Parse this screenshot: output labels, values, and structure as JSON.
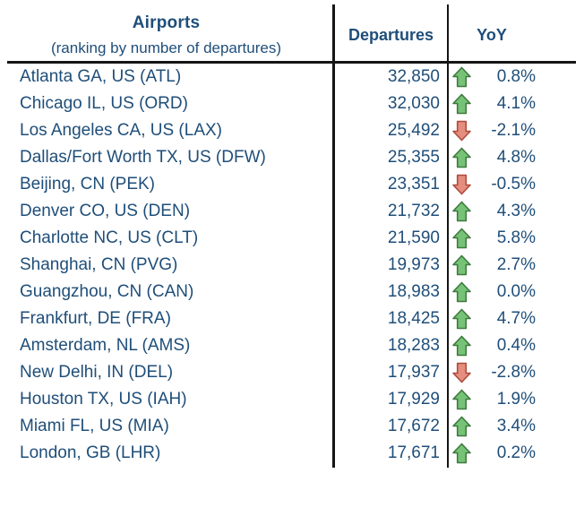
{
  "colors": {
    "text": "#1F4E79",
    "rule_line": "#151515",
    "up_arrow_fill": "#76C276",
    "up_arrow_stroke": "#3E7A3E",
    "down_arrow_fill": "#E58D7E",
    "down_arrow_stroke": "#AE4B3C",
    "background": "#FFFFFF"
  },
  "table": {
    "header": {
      "airports_title": "Airports",
      "airports_subtitle": "(ranking by number of departures)",
      "departures_label": "Departures",
      "yoy_label": "YoY"
    },
    "rows": [
      {
        "airport": "Atlanta GA, US (ATL)",
        "departures": "32,850",
        "direction": "up",
        "yoy": "0.8%"
      },
      {
        "airport": "Chicago IL, US (ORD)",
        "departures": "32,030",
        "direction": "up",
        "yoy": "4.1%"
      },
      {
        "airport": "Los Angeles CA, US (LAX)",
        "departures": "25,492",
        "direction": "down",
        "yoy": "-2.1%"
      },
      {
        "airport": "Dallas/Fort Worth TX, US (DFW)",
        "departures": "25,355",
        "direction": "up",
        "yoy": "4.8%"
      },
      {
        "airport": "Beijing, CN (PEK)",
        "departures": "23,351",
        "direction": "down",
        "yoy": "-0.5%"
      },
      {
        "airport": "Denver CO, US (DEN)",
        "departures": "21,732",
        "direction": "up",
        "yoy": "4.3%"
      },
      {
        "airport": "Charlotte NC, US (CLT)",
        "departures": "21,590",
        "direction": "up",
        "yoy": "5.8%"
      },
      {
        "airport": "Shanghai, CN (PVG)",
        "departures": "19,973",
        "direction": "up",
        "yoy": "2.7%"
      },
      {
        "airport": "Guangzhou, CN (CAN)",
        "departures": "18,983",
        "direction": "up",
        "yoy": "0.0%"
      },
      {
        "airport": "Frankfurt, DE (FRA)",
        "departures": "18,425",
        "direction": "up",
        "yoy": "4.7%"
      },
      {
        "airport": "Amsterdam, NL (AMS)",
        "departures": "18,283",
        "direction": "up",
        "yoy": "0.4%"
      },
      {
        "airport": "New Delhi, IN (DEL)",
        "departures": "17,937",
        "direction": "down",
        "yoy": "-2.8%"
      },
      {
        "airport": "Houston TX, US (IAH)",
        "departures": "17,929",
        "direction": "up",
        "yoy": "1.9%"
      },
      {
        "airport": "Miami FL, US (MIA)",
        "departures": "17,672",
        "direction": "up",
        "yoy": "3.4%"
      },
      {
        "airport": "London, GB (LHR)",
        "departures": "17,671",
        "direction": "up",
        "yoy": "0.2%"
      }
    ]
  },
  "chart_data": {
    "type": "table",
    "title": "Airports (ranking by number of departures)",
    "columns": [
      "Airports (ranking by number of departures)",
      "Departures",
      "YoY"
    ],
    "rows": [
      {
        "airport": "Atlanta GA, US (ATL)",
        "departures": 32850,
        "yoy_percent": 0.8,
        "trend": "up"
      },
      {
        "airport": "Chicago IL, US (ORD)",
        "departures": 32030,
        "yoy_percent": 4.1,
        "trend": "up"
      },
      {
        "airport": "Los Angeles CA, US (LAX)",
        "departures": 25492,
        "yoy_percent": -2.1,
        "trend": "down"
      },
      {
        "airport": "Dallas/Fort Worth TX, US (DFW)",
        "departures": 25355,
        "yoy_percent": 4.8,
        "trend": "up"
      },
      {
        "airport": "Beijing, CN (PEK)",
        "departures": 23351,
        "yoy_percent": -0.5,
        "trend": "down"
      },
      {
        "airport": "Denver CO, US (DEN)",
        "departures": 21732,
        "yoy_percent": 4.3,
        "trend": "up"
      },
      {
        "airport": "Charlotte NC, US (CLT)",
        "departures": 21590,
        "yoy_percent": 5.8,
        "trend": "up"
      },
      {
        "airport": "Shanghai, CN (PVG)",
        "departures": 19973,
        "yoy_percent": 2.7,
        "trend": "up"
      },
      {
        "airport": "Guangzhou, CN (CAN)",
        "departures": 18983,
        "yoy_percent": 0.0,
        "trend": "up"
      },
      {
        "airport": "Frankfurt, DE (FRA)",
        "departures": 18425,
        "yoy_percent": 4.7,
        "trend": "up"
      },
      {
        "airport": "Amsterdam, NL (AMS)",
        "departures": 18283,
        "yoy_percent": 0.4,
        "trend": "up"
      },
      {
        "airport": "New Delhi, IN (DEL)",
        "departures": 17937,
        "yoy_percent": -2.8,
        "trend": "down"
      },
      {
        "airport": "Houston TX, US (IAH)",
        "departures": 17929,
        "yoy_percent": 1.9,
        "trend": "up"
      },
      {
        "airport": "Miami FL, US (MIA)",
        "departures": 17672,
        "yoy_percent": 3.4,
        "trend": "up"
      },
      {
        "airport": "London, GB (LHR)",
        "departures": 17671,
        "yoy_percent": 0.2,
        "trend": "up"
      }
    ]
  }
}
